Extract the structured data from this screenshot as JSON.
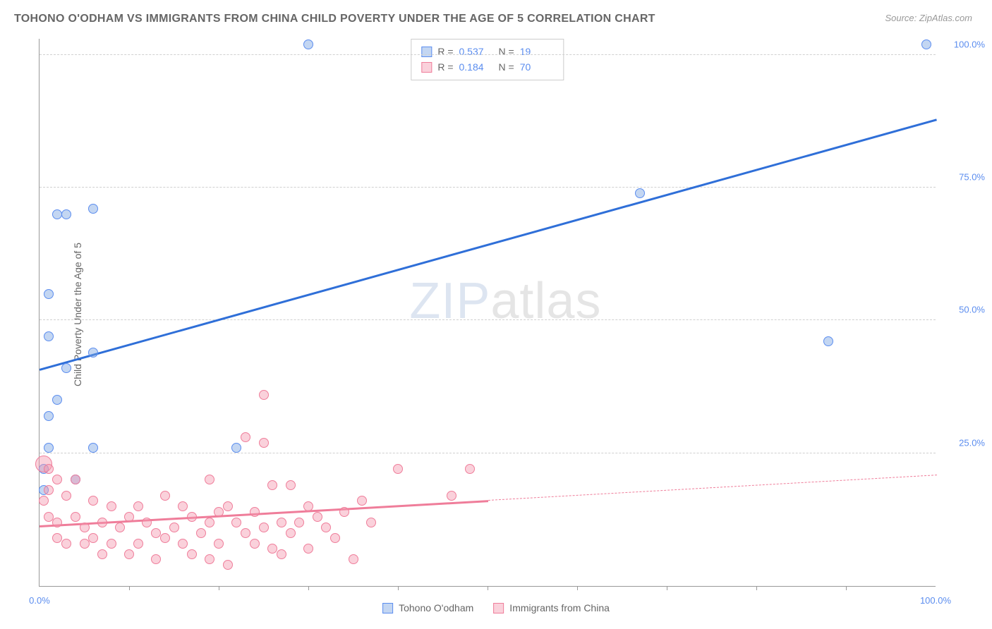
{
  "title": "TOHONO O'ODHAM VS IMMIGRANTS FROM CHINA CHILD POVERTY UNDER THE AGE OF 5 CORRELATION CHART",
  "source": "Source: ZipAtlas.com",
  "y_axis_label": "Child Poverty Under the Age of 5",
  "watermark": {
    "part1": "ZIP",
    "part2": "atlas"
  },
  "chart": {
    "type": "scatter",
    "background_color": "#ffffff",
    "grid_color": "#d0d0d0",
    "axis_color": "#999999",
    "tick_label_color": "#5b8def",
    "xlim": [
      0,
      100
    ],
    "ylim": [
      0,
      103
    ],
    "y_ticks": [
      {
        "value": 25,
        "label": "25.0%"
      },
      {
        "value": 50,
        "label": "50.0%"
      },
      {
        "value": 75,
        "label": "75.0%"
      },
      {
        "value": 100,
        "label": "100.0%"
      }
    ],
    "x_ticks": [
      {
        "value": 0,
        "label": "0.0%"
      },
      {
        "value": 100,
        "label": "100.0%"
      }
    ],
    "x_minor_ticks": [
      10,
      20,
      30,
      40,
      50,
      60,
      70,
      80,
      90
    ],
    "series": [
      {
        "name": "Tohono O'odham",
        "marker_fill": "rgba(121,164,226,0.45)",
        "marker_stroke": "#5b8def",
        "line_color": "#2f6fd8",
        "marker_radius": 7,
        "r_value": "0.537",
        "n_value": "19",
        "trend": {
          "x1": 0,
          "y1": 41,
          "x2": 100,
          "y2": 88,
          "dash_from_x": null
        },
        "points": [
          {
            "x": 30,
            "y": 102
          },
          {
            "x": 99,
            "y": 102
          },
          {
            "x": 67,
            "y": 74
          },
          {
            "x": 6,
            "y": 71
          },
          {
            "x": 2,
            "y": 70
          },
          {
            "x": 3,
            "y": 70
          },
          {
            "x": 1,
            "y": 55
          },
          {
            "x": 1,
            "y": 47
          },
          {
            "x": 88,
            "y": 46
          },
          {
            "x": 6,
            "y": 44
          },
          {
            "x": 3,
            "y": 41
          },
          {
            "x": 2,
            "y": 35
          },
          {
            "x": 1,
            "y": 32
          },
          {
            "x": 1,
            "y": 26
          },
          {
            "x": 6,
            "y": 26
          },
          {
            "x": 22,
            "y": 26
          },
          {
            "x": 0.5,
            "y": 22
          },
          {
            "x": 4,
            "y": 20
          },
          {
            "x": 0.5,
            "y": 18
          }
        ]
      },
      {
        "name": "Immigrants from China",
        "marker_fill": "rgba(244,154,175,0.45)",
        "marker_stroke": "#ef7d9a",
        "line_color": "#ef7d9a",
        "marker_radius": 7,
        "r_value": "0.184",
        "n_value": "70",
        "trend": {
          "x1": 0,
          "y1": 11.5,
          "x2": 100,
          "y2": 21,
          "dash_from_x": 50
        },
        "points": [
          {
            "x": 25,
            "y": 36
          },
          {
            "x": 23,
            "y": 28
          },
          {
            "x": 25,
            "y": 27
          },
          {
            "x": 0.5,
            "y": 23,
            "r": 12
          },
          {
            "x": 1,
            "y": 22
          },
          {
            "x": 40,
            "y": 22
          },
          {
            "x": 48,
            "y": 22
          },
          {
            "x": 2,
            "y": 20
          },
          {
            "x": 4,
            "y": 20
          },
          {
            "x": 19,
            "y": 20
          },
          {
            "x": 26,
            "y": 19
          },
          {
            "x": 28,
            "y": 19
          },
          {
            "x": 1,
            "y": 18
          },
          {
            "x": 3,
            "y": 17
          },
          {
            "x": 0.5,
            "y": 16
          },
          {
            "x": 6,
            "y": 16
          },
          {
            "x": 8,
            "y": 15
          },
          {
            "x": 11,
            "y": 15
          },
          {
            "x": 14,
            "y": 17
          },
          {
            "x": 16,
            "y": 15
          },
          {
            "x": 20,
            "y": 14
          },
          {
            "x": 21,
            "y": 15
          },
          {
            "x": 24,
            "y": 14
          },
          {
            "x": 30,
            "y": 15
          },
          {
            "x": 31,
            "y": 13
          },
          {
            "x": 34,
            "y": 14
          },
          {
            "x": 36,
            "y": 16
          },
          {
            "x": 46,
            "y": 17
          },
          {
            "x": 1,
            "y": 13
          },
          {
            "x": 2,
            "y": 12
          },
          {
            "x": 4,
            "y": 13
          },
          {
            "x": 5,
            "y": 11
          },
          {
            "x": 7,
            "y": 12
          },
          {
            "x": 9,
            "y": 11
          },
          {
            "x": 10,
            "y": 13
          },
          {
            "x": 12,
            "y": 12
          },
          {
            "x": 13,
            "y": 10
          },
          {
            "x": 15,
            "y": 11
          },
          {
            "x": 17,
            "y": 13
          },
          {
            "x": 18,
            "y": 10
          },
          {
            "x": 19,
            "y": 12
          },
          {
            "x": 22,
            "y": 12
          },
          {
            "x": 23,
            "y": 10
          },
          {
            "x": 25,
            "y": 11
          },
          {
            "x": 27,
            "y": 12
          },
          {
            "x": 28,
            "y": 10
          },
          {
            "x": 29,
            "y": 12
          },
          {
            "x": 32,
            "y": 11
          },
          {
            "x": 33,
            "y": 9
          },
          {
            "x": 37,
            "y": 12
          },
          {
            "x": 2,
            "y": 9
          },
          {
            "x": 3,
            "y": 8
          },
          {
            "x": 5,
            "y": 8
          },
          {
            "x": 6,
            "y": 9
          },
          {
            "x": 8,
            "y": 8
          },
          {
            "x": 11,
            "y": 8
          },
          {
            "x": 14,
            "y": 9
          },
          {
            "x": 16,
            "y": 8
          },
          {
            "x": 20,
            "y": 8
          },
          {
            "x": 24,
            "y": 8
          },
          {
            "x": 26,
            "y": 7
          },
          {
            "x": 7,
            "y": 6
          },
          {
            "x": 10,
            "y": 6
          },
          {
            "x": 13,
            "y": 5
          },
          {
            "x": 17,
            "y": 6
          },
          {
            "x": 19,
            "y": 5
          },
          {
            "x": 21,
            "y": 4
          },
          {
            "x": 27,
            "y": 6
          },
          {
            "x": 30,
            "y": 7
          },
          {
            "x": 35,
            "y": 5
          }
        ]
      }
    ]
  },
  "legend_top": {
    "rows": [
      {
        "swatch_fill": "rgba(121,164,226,0.45)",
        "swatch_stroke": "#5b8def",
        "r_label": "R =",
        "r": "0.537",
        "n_label": "N =",
        "n": "19"
      },
      {
        "swatch_fill": "rgba(244,154,175,0.45)",
        "swatch_stroke": "#ef7d9a",
        "r_label": "R =",
        "r": "0.184",
        "n_label": "N =",
        "n": "70"
      }
    ]
  },
  "legend_bottom": {
    "items": [
      {
        "swatch_fill": "rgba(121,164,226,0.45)",
        "swatch_stroke": "#5b8def",
        "label": "Tohono O'odham"
      },
      {
        "swatch_fill": "rgba(244,154,175,0.45)",
        "swatch_stroke": "#ef7d9a",
        "label": "Immigrants from China"
      }
    ]
  }
}
